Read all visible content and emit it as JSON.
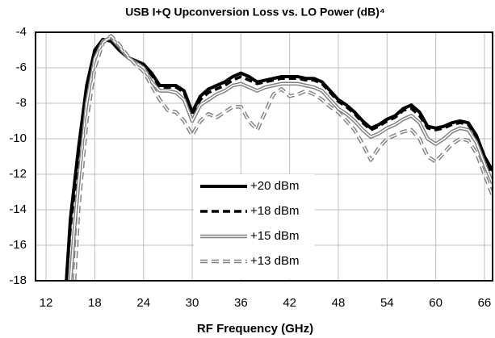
{
  "chart_data": {
    "type": "line",
    "title": "USB I+Q Upconversion Loss vs. LO Power (dB)⁴",
    "x_label": "RF Frequency (GHz)",
    "x": [
      14.5,
      15,
      15.5,
      16,
      17,
      18,
      19,
      20,
      21,
      22,
      23,
      24,
      25,
      26,
      27,
      28,
      29,
      30,
      31,
      32,
      33,
      34,
      35,
      36,
      37,
      38,
      39,
      40,
      41,
      42,
      43,
      44,
      45,
      46,
      47,
      48,
      49,
      50,
      51,
      52,
      53,
      54,
      55,
      56,
      57,
      58,
      59,
      60,
      61,
      62,
      63,
      64,
      65,
      66,
      67
    ],
    "series": [
      {
        "name": "+20 dBm",
        "color": "#000000",
        "style": "solid",
        "values": [
          -18,
          -14.5,
          -12.5,
          -10.5,
          -7,
          -5,
          -4.4,
          -4.5,
          -5,
          -5.4,
          -5.6,
          -5.8,
          -6.3,
          -7,
          -7,
          -7,
          -7.3,
          -8.5,
          -7.6,
          -7.2,
          -7,
          -6.8,
          -6.5,
          -6.3,
          -6.5,
          -6.8,
          -6.7,
          -6.6,
          -6.5,
          -6.5,
          -6.5,
          -6.6,
          -6.6,
          -6.8,
          -7.3,
          -7.8,
          -8.1,
          -8.5,
          -9,
          -9.4,
          -9.2,
          -8.9,
          -8.7,
          -8.3,
          -8.1,
          -8.5,
          -9.3,
          -9.4,
          -9.3,
          -9.1,
          -9,
          -9.1,
          -9.8,
          -11,
          -11.8
        ]
      },
      {
        "name": "+18 dBm",
        "color": "#000000",
        "style": "dashed",
        "values": [
          -18,
          -15,
          -13,
          -11,
          -7.3,
          -5.2,
          -4.4,
          -4.4,
          -4.9,
          -5.4,
          -5.6,
          -5.8,
          -6.4,
          -7.1,
          -7.1,
          -7.1,
          -7.4,
          -8.6,
          -7.8,
          -7.4,
          -7.2,
          -7,
          -6.7,
          -6.5,
          -6.7,
          -6.9,
          -6.8,
          -6.7,
          -6.6,
          -6.6,
          -6.6,
          -6.7,
          -6.7,
          -6.9,
          -7.4,
          -7.9,
          -8.2,
          -8.6,
          -9.1,
          -9.5,
          -9.3,
          -9,
          -8.8,
          -8.4,
          -8.3,
          -8.7,
          -9.4,
          -9.5,
          -9.4,
          -9.2,
          -9.1,
          -9.2,
          -9.9,
          -11.1,
          -12
        ]
      },
      {
        "name": "+15 dBm",
        "color": "#808080",
        "style": "double",
        "values": [
          null,
          -18,
          -15,
          -12.5,
          -8,
          -5.5,
          -4.5,
          -4.3,
          -4.8,
          -5.4,
          -5.7,
          -6,
          -6.8,
          -7.3,
          -7.3,
          -7.4,
          -7.8,
          -9,
          -8.1,
          -7.8,
          -7.5,
          -7.3,
          -7,
          -6.9,
          -7.1,
          -7.3,
          -7.1,
          -7,
          -6.9,
          -6.9,
          -6.9,
          -7,
          -7.1,
          -7.3,
          -7.8,
          -8.3,
          -8.6,
          -9,
          -9.5,
          -9.9,
          -9.7,
          -9.4,
          -9.2,
          -8.9,
          -8.7,
          -9.1,
          -10,
          -10.3,
          -10,
          -9.6,
          -9.4,
          -9.5,
          -10.2,
          -11.4,
          -12.5
        ]
      },
      {
        "name": "+13 dBm",
        "color": "#808080",
        "style": "double-dashed",
        "values": [
          null,
          null,
          -18,
          -14,
          -9,
          -6,
          -4.6,
          -4.2,
          -4.7,
          -5.3,
          -5.8,
          -6.2,
          -7,
          -7.8,
          -8.4,
          -8.5,
          -9,
          -9.8,
          -9,
          -8.6,
          -8.8,
          -8.5,
          -8.2,
          -8.2,
          -9,
          -9.5,
          -8.5,
          -7.5,
          -7.2,
          -7.6,
          -7.5,
          -7.3,
          -7.5,
          -7.8,
          -8.2,
          -8.5,
          -9,
          -9.5,
          -10.3,
          -11.2,
          -10.5,
          -10,
          -9.8,
          -9.6,
          -9.5,
          -10,
          -11,
          -11.3,
          -10.8,
          -10.3,
          -10,
          -10.1,
          -10.8,
          -12,
          -13.2
        ]
      }
    ],
    "xlim": [
      10.7,
      67
    ],
    "xticks": [
      12,
      18,
      24,
      30,
      36,
      42,
      48,
      54,
      60,
      66
    ],
    "ylim": [
      -18,
      -4
    ],
    "yticks": [
      -18,
      -16,
      -14,
      -12,
      -10,
      -8,
      -6,
      -4
    ],
    "grid": true,
    "legend": "center"
  }
}
